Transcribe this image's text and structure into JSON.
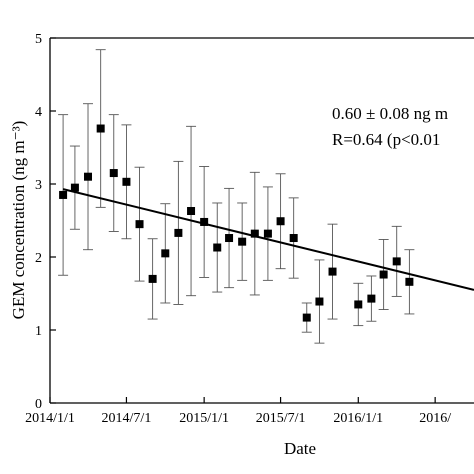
{
  "chart_data": {
    "type": "scatter",
    "xlabel": "Date",
    "ylabel": "GEM concentration (ng m⁻³)",
    "x_ticks": [
      "2014/1/1",
      "2014/7/1",
      "2015/1/1",
      "2015/7/1",
      "2016/1/1",
      "2016/"
    ],
    "y_ticks": [
      "0",
      "1",
      "2",
      "3",
      "4",
      "5"
    ],
    "ylim": [
      0,
      5
    ],
    "xlim": [
      "2014-01-01",
      "2016-10-01"
    ],
    "annotation_lines": [
      "0.60 ± 0.08 ng m",
      "R=0.64 (p<0.01"
    ],
    "marker_color": "#000000",
    "points": [
      {
        "x": "2014-02-01",
        "y": 2.85,
        "err": 1.1
      },
      {
        "x": "2014-03-01",
        "y": 2.95,
        "err": 0.57
      },
      {
        "x": "2014-04-01",
        "y": 3.1,
        "err": 1.0
      },
      {
        "x": "2014-05-01",
        "y": 3.76,
        "err": 1.08
      },
      {
        "x": "2014-06-01",
        "y": 3.15,
        "err": 0.8
      },
      {
        "x": "2014-07-01",
        "y": 3.03,
        "err": 0.78
      },
      {
        "x": "2014-08-01",
        "y": 2.45,
        "err": 0.78
      },
      {
        "x": "2014-09-01",
        "y": 1.7,
        "err": 0.55
      },
      {
        "x": "2014-10-01",
        "y": 2.05,
        "err": 0.68
      },
      {
        "x": "2014-11-01",
        "y": 2.33,
        "err": 0.98
      },
      {
        "x": "2014-12-01",
        "y": 2.63,
        "err": 1.16
      },
      {
        "x": "2015-01-01",
        "y": 2.48,
        "err": 0.76
      },
      {
        "x": "2015-02-01",
        "y": 2.13,
        "err": 0.61
      },
      {
        "x": "2015-03-01",
        "y": 2.26,
        "err": 0.68
      },
      {
        "x": "2015-04-01",
        "y": 2.21,
        "err": 0.53
      },
      {
        "x": "2015-05-01",
        "y": 2.32,
        "err": 0.84
      },
      {
        "x": "2015-06-01",
        "y": 2.32,
        "err": 0.64
      },
      {
        "x": "2015-07-01",
        "y": 2.49,
        "err": 0.65
      },
      {
        "x": "2015-08-01",
        "y": 2.26,
        "err": 0.55
      },
      {
        "x": "2015-09-01",
        "y": 1.17,
        "err": 0.2
      },
      {
        "x": "2015-10-01",
        "y": 1.39,
        "err": 0.57
      },
      {
        "x": "2015-11-01",
        "y": 1.8,
        "err": 0.65
      },
      {
        "x": "2016-01-01",
        "y": 1.35,
        "err": 0.29
      },
      {
        "x": "2016-02-01",
        "y": 1.43,
        "err": 0.31
      },
      {
        "x": "2016-03-01",
        "y": 1.76,
        "err": 0.48
      },
      {
        "x": "2016-04-01",
        "y": 1.94,
        "err": 0.48
      },
      {
        "x": "2016-05-01",
        "y": 1.66,
        "err": 0.44
      }
    ],
    "trend": {
      "x_start": "2014-02-01",
      "y_start": 2.93,
      "x_end": "2016-10-01",
      "y_end": 1.55
    }
  }
}
